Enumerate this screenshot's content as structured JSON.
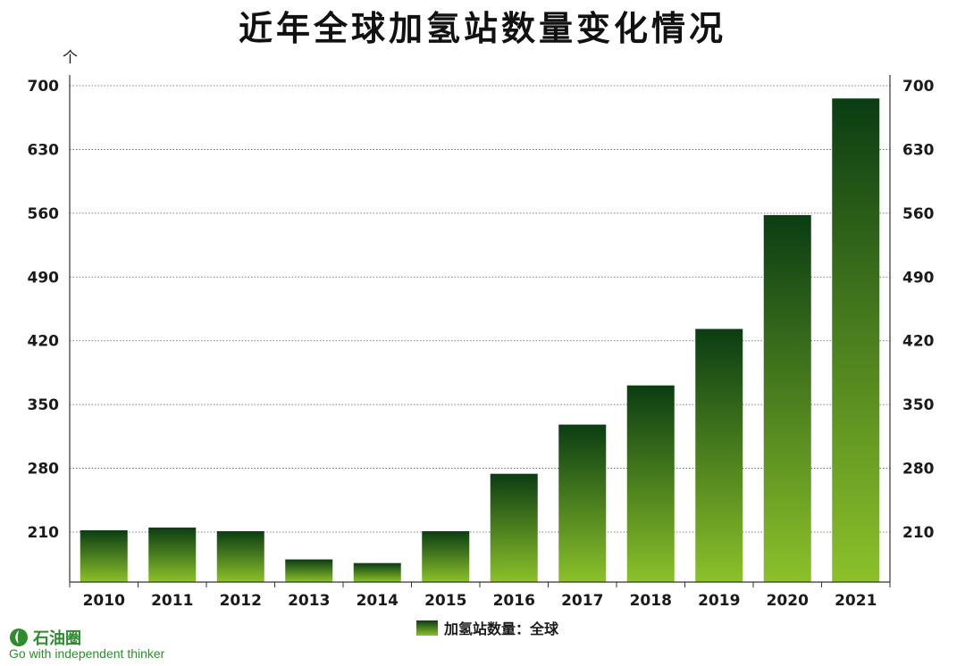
{
  "chart_data": {
    "type": "bar",
    "title": "近年全球加氢站数量变化情况",
    "unit": "个",
    "categories": [
      "2010",
      "2011",
      "2012",
      "2013",
      "2014",
      "2015",
      "2016",
      "2017",
      "2018",
      "2019",
      "2020",
      "2021"
    ],
    "series": [
      {
        "name": "加氢站数量：全球",
        "values": [
          212,
          215,
          211,
          180,
          176,
          211,
          274,
          328,
          371,
          433,
          558,
          686
        ]
      }
    ],
    "yticks": [
      210,
      280,
      350,
      420,
      490,
      560,
      630,
      700
    ],
    "ylim": [
      150,
      700
    ],
    "secondary_axis": true,
    "grid": "horizontal-dotted",
    "legend_position": "bottom-center",
    "colors": {
      "bar_top": "#0a3d12",
      "bar_bottom": "#8cc12a"
    }
  },
  "branding": {
    "logo_name": "石油圈",
    "tagline": "Go with independent thinker",
    "logo_icon": "leaf-drop-icon"
  }
}
